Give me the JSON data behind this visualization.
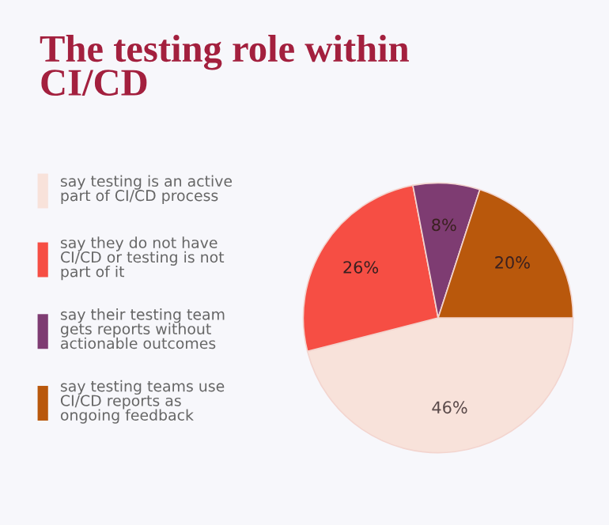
{
  "chart_data": {
    "type": "pie",
    "title": "The testing role within\nCI/CD",
    "categories": [
      "say testing is an active\npart of CI/CD process",
      "say they do not have\nCI/CD or testing is not\npart of it",
      "say their testing team\ngets reports without\nactionable outcomes",
      "say testing teams use\nCI/CD reports as\nongoing feedback"
    ],
    "values": [
      46,
      26,
      8,
      20
    ],
    "colors": [
      "#f8e2da",
      "#f64e44",
      "#7e3c72",
      "#b9580c"
    ],
    "value_labels": [
      "46%",
      "26%",
      "8%",
      "20%"
    ],
    "legend": "left"
  }
}
